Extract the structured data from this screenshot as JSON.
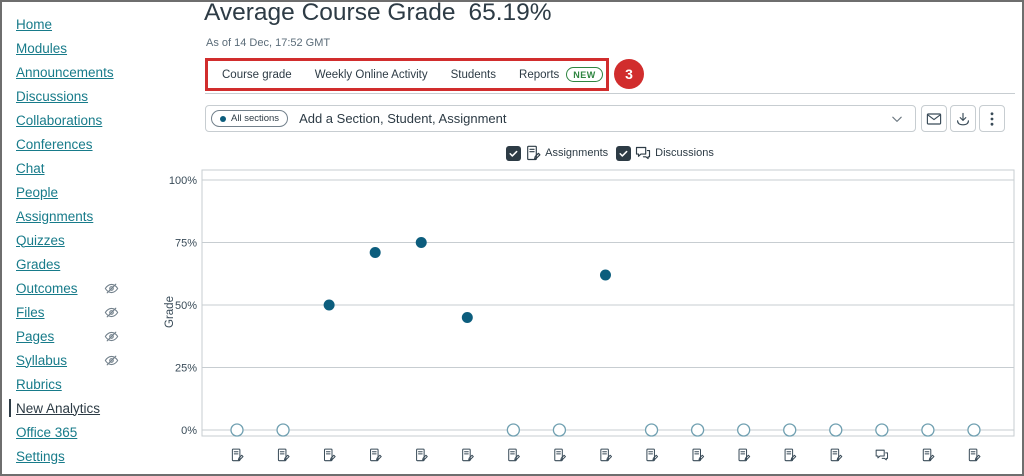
{
  "sidebar": {
    "items": [
      {
        "label": "Home"
      },
      {
        "label": "Modules"
      },
      {
        "label": "Announcements"
      },
      {
        "label": "Discussions"
      },
      {
        "label": "Collaborations"
      },
      {
        "label": "Conferences"
      },
      {
        "label": "Chat"
      },
      {
        "label": "People"
      },
      {
        "label": "Assignments"
      },
      {
        "label": "Quizzes"
      },
      {
        "label": "Grades"
      },
      {
        "label": "Outcomes",
        "hidden": true
      },
      {
        "label": "Files",
        "hidden": true
      },
      {
        "label": "Pages",
        "hidden": true
      },
      {
        "label": "Syllabus",
        "hidden": true
      },
      {
        "label": "Rubrics"
      },
      {
        "label": "New Analytics",
        "active": true
      },
      {
        "label": "Office 365"
      },
      {
        "label": "Settings"
      }
    ]
  },
  "header": {
    "title": "Average Course Grade",
    "value": "65.19%",
    "as_of": "As of 14 Dec, 17:52 GMT"
  },
  "tabs": [
    {
      "label": "Course grade"
    },
    {
      "label": "Weekly Online Activity"
    },
    {
      "label": "Students"
    },
    {
      "label": "Reports",
      "badge": "NEW"
    }
  ],
  "annotation": {
    "number": "3"
  },
  "filter": {
    "pill": "All sections",
    "placeholder": "Add a Section, Student, Assignment"
  },
  "toolbar": [
    {
      "icon": "mail"
    },
    {
      "icon": "download"
    },
    {
      "icon": "more"
    }
  ],
  "legend": [
    {
      "label": "Assignments",
      "icon": "assignment",
      "checked": true
    },
    {
      "label": "Discussions",
      "icon": "discussion",
      "checked": true
    }
  ],
  "chart_data": {
    "type": "scatter",
    "title": "Average Course Grade",
    "ylabel": "Grade",
    "yticks": [
      0,
      25,
      50,
      75,
      100
    ],
    "ylim": [
      0,
      100
    ],
    "points": [
      {
        "x": 1,
        "grade": 0,
        "filled": false,
        "icon": "assignment"
      },
      {
        "x": 2,
        "grade": 0,
        "filled": false,
        "icon": "assignment"
      },
      {
        "x": 3,
        "grade": 50,
        "filled": true,
        "icon": "assignment"
      },
      {
        "x": 4,
        "grade": 71,
        "filled": true,
        "icon": "assignment"
      },
      {
        "x": 5,
        "grade": 75,
        "filled": true,
        "icon": "assignment"
      },
      {
        "x": 6,
        "grade": 45,
        "filled": true,
        "icon": "assignment"
      },
      {
        "x": 7,
        "grade": 0,
        "filled": false,
        "icon": "assignment"
      },
      {
        "x": 8,
        "grade": 0,
        "filled": false,
        "icon": "assignment"
      },
      {
        "x": 9,
        "grade": 62,
        "filled": true,
        "icon": "assignment"
      },
      {
        "x": 10,
        "grade": 0,
        "filled": false,
        "icon": "assignment"
      },
      {
        "x": 11,
        "grade": 0,
        "filled": false,
        "icon": "assignment"
      },
      {
        "x": 12,
        "grade": 0,
        "filled": false,
        "icon": "assignment"
      },
      {
        "x": 13,
        "grade": 0,
        "filled": false,
        "icon": "assignment"
      },
      {
        "x": 14,
        "grade": 0,
        "filled": false,
        "icon": "assignment"
      },
      {
        "x": 15,
        "grade": 0,
        "filled": false,
        "icon": "discussion"
      },
      {
        "x": 16,
        "grade": 0,
        "filled": false,
        "icon": "assignment"
      },
      {
        "x": 17,
        "grade": 0,
        "filled": false,
        "icon": "assignment"
      }
    ]
  },
  "colors": {
    "link": "#177B8A",
    "ink": "#2D3B45",
    "grid": "#C7CDD1",
    "icon": "#394B58",
    "red": "#D12D2D",
    "green": "#2E8540",
    "point_fill": "#0C5D7D",
    "point_open_stroke": "#70A0B1"
  }
}
